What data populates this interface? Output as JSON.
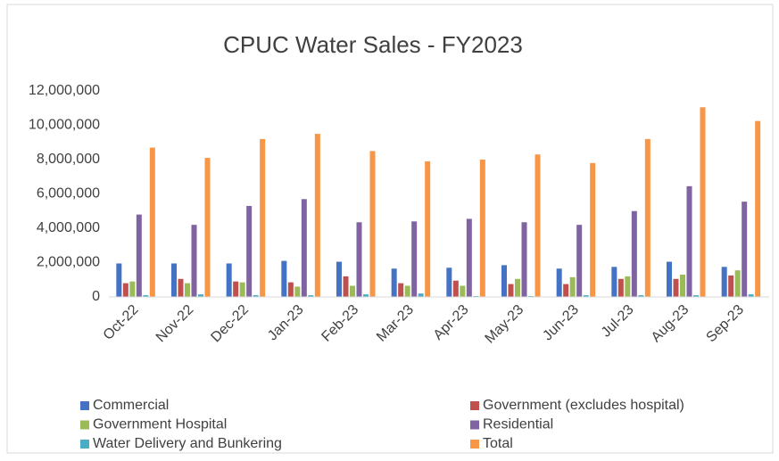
{
  "chart_data": {
    "type": "bar",
    "title": "CPUC Water Sales - FY2023",
    "categories": [
      "Oct-22",
      "Nov-22",
      "Dec-22",
      "Jan-23",
      "Feb-23",
      "Mar-23",
      "Apr-23",
      "May-23",
      "Jun-23",
      "Jul-23",
      "Aug-23",
      "Sep-23"
    ],
    "series": [
      {
        "name": "Commercial",
        "color": "#4472c4",
        "values": [
          1950000,
          1950000,
          1950000,
          2100000,
          2050000,
          1650000,
          1700000,
          1850000,
          1650000,
          1750000,
          2050000,
          1750000
        ]
      },
      {
        "name": "Government (excludes hospital)",
        "color": "#c0504d",
        "values": [
          800000,
          1050000,
          900000,
          850000,
          1200000,
          800000,
          950000,
          750000,
          750000,
          1050000,
          1050000,
          1250000
        ]
      },
      {
        "name": "Government Hospital",
        "color": "#9bbb59",
        "values": [
          900000,
          800000,
          850000,
          600000,
          650000,
          650000,
          650000,
          1050000,
          1150000,
          1200000,
          1300000,
          1550000
        ]
      },
      {
        "name": "Residential",
        "color": "#8064a2",
        "values": [
          4800000,
          4200000,
          5300000,
          5700000,
          4350000,
          4400000,
          4550000,
          4350000,
          4200000,
          5000000,
          6450000,
          5550000
        ]
      },
      {
        "name": "Water Delivery and Bunkering",
        "color": "#4bacc6",
        "values": [
          100000,
          150000,
          100000,
          100000,
          150000,
          200000,
          50000,
          50000,
          100000,
          100000,
          100000,
          150000
        ]
      },
      {
        "name": "Total",
        "color": "#f79646",
        "values": [
          8700000,
          8100000,
          9200000,
          9500000,
          8500000,
          7900000,
          8000000,
          8300000,
          7800000,
          9200000,
          11050000,
          10250000
        ]
      }
    ],
    "ylim": [
      0,
      12000000
    ],
    "yticks": [
      0,
      {
        "value": 2000000,
        "label": "2,000,000"
      },
      {
        "value": 4000000,
        "label": "4,000,000"
      },
      {
        "value": 6000000,
        "label": "6,000,000"
      },
      {
        "value": 8000000,
        "label": "8,000,000"
      },
      {
        "value": 10000000,
        "label": "10,000,000"
      },
      {
        "value": 12000000,
        "label": "12,000,000"
      }
    ],
    "grid": false
  }
}
